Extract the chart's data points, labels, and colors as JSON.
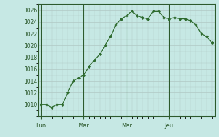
{
  "x_labels": [
    "Lun",
    "Mar",
    "Mer",
    "Jeu"
  ],
  "y_values": [
    1010,
    1010,
    1009.5,
    1010,
    1010,
    1012,
    1014,
    1014.5,
    1015,
    1016.5,
    1017.5,
    1018.5,
    1020,
    1021.5,
    1023.5,
    1024.5,
    1025,
    1025.8,
    1025,
    1024.7,
    1024.5,
    1025.8,
    1025.8,
    1024.7,
    1024.5,
    1024.7,
    1024.5,
    1024.5,
    1024.2,
    1023.5,
    1022,
    1021.5,
    1020.5
  ],
  "ylim": [
    1008,
    1027
  ],
  "yticks": [
    1010,
    1012,
    1014,
    1016,
    1018,
    1020,
    1022,
    1024,
    1026
  ],
  "n_points": 33,
  "day_indices": [
    0,
    8,
    16,
    24
  ],
  "line_color": "#2d6a2d",
  "marker_color": "#2d6a2d",
  "bg_color": "#c6e8e4",
  "grid_major_color": "#b0c8c4",
  "grid_minor_color": "#b0c8c4",
  "axis_label_color": "#2d5a2d",
  "border_color": "#2d5a2d"
}
